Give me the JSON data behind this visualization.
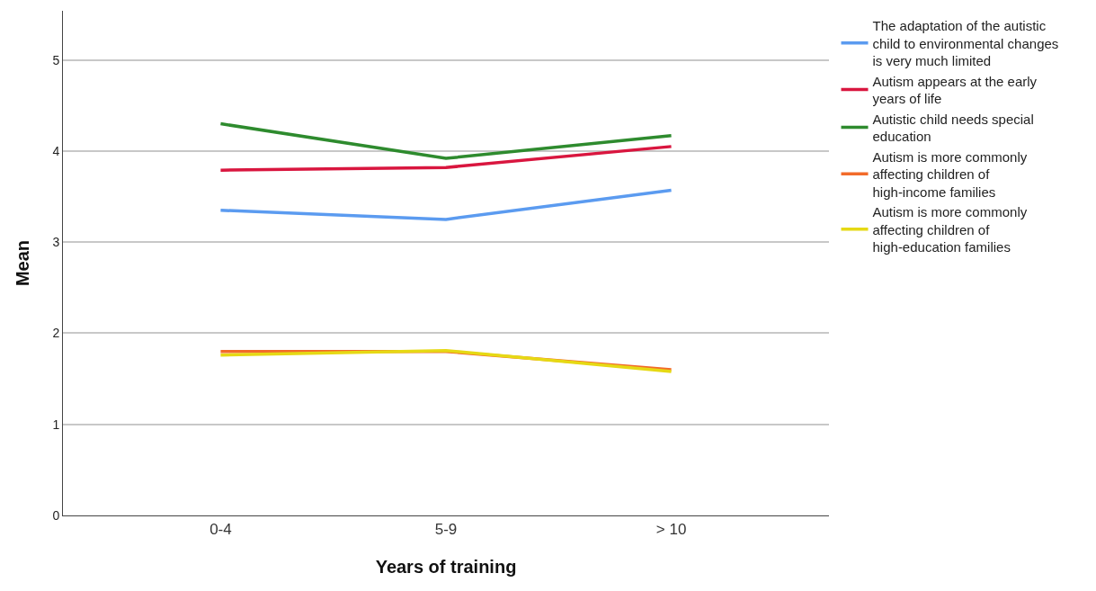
{
  "chart_data": {
    "type": "line",
    "xlabel": "Years of training",
    "ylabel": "Mean",
    "categories": [
      "0-4",
      "5-9",
      "> 10"
    ],
    "series": [
      {
        "name": "The adaptation of the autistic child to environmental changes is very much limited",
        "color": "#5b9bf0",
        "values": [
          3.35,
          3.25,
          3.57
        ]
      },
      {
        "name": "Autism appears at the early years of life",
        "color": "#d9163f",
        "values": [
          3.79,
          3.82,
          4.05
        ]
      },
      {
        "name": "Autistic child needs special education",
        "color": "#2e8b2e",
        "values": [
          4.3,
          3.92,
          4.17
        ]
      },
      {
        "name": "Autism is more commonly affecting children of high-income families",
        "color": "#f26b2a",
        "values": [
          1.8,
          1.8,
          1.6
        ]
      },
      {
        "name": "Autism is more commonly affecting children of high-education families",
        "color": "#e6d914",
        "values": [
          1.76,
          1.81,
          1.58
        ]
      }
    ],
    "ylim": [
      0,
      5.54
    ],
    "yticks": [
      0,
      1,
      2,
      3,
      4,
      5
    ],
    "grid": "y",
    "legend": "top right",
    "marker": "none",
    "line_style": "solid"
  }
}
